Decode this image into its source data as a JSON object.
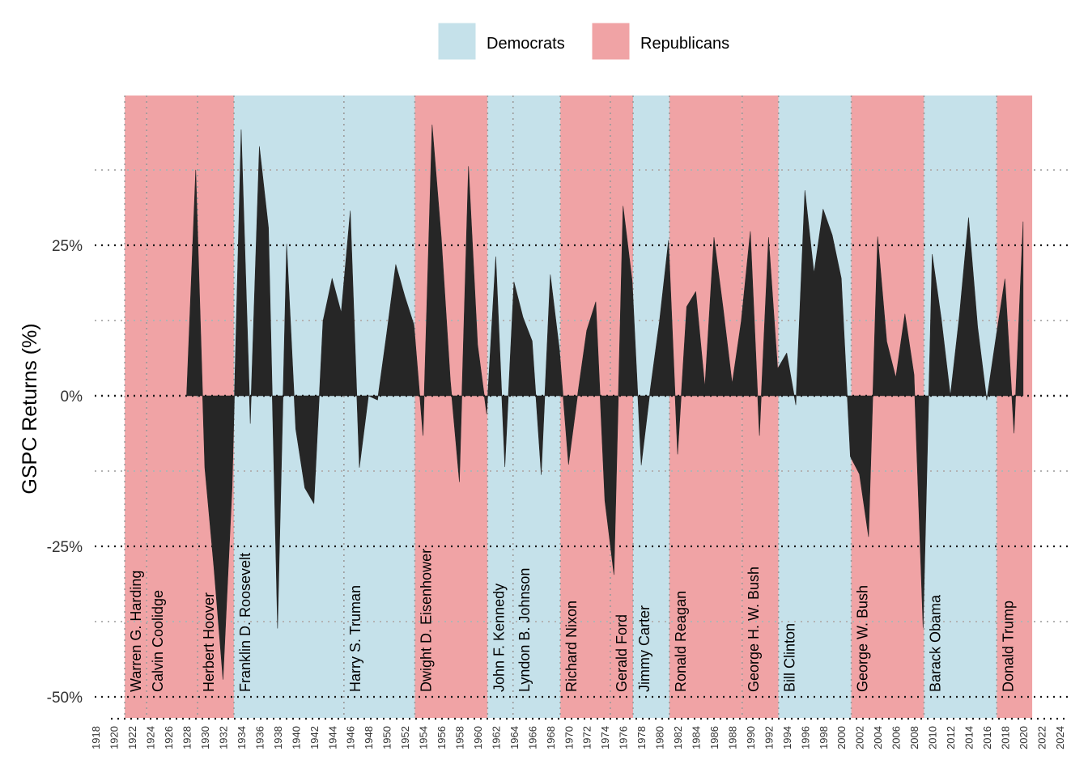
{
  "chart_data": {
    "type": "area",
    "title": "",
    "xlabel": "",
    "ylabel": "GSPC Returns (%)",
    "xlim": [
      1917,
      2025
    ],
    "ylim": [
      -53,
      50
    ],
    "x_ticks": [
      1918,
      1920,
      1922,
      1924,
      1926,
      1928,
      1930,
      1932,
      1934,
      1936,
      1938,
      1940,
      1942,
      1944,
      1946,
      1948,
      1950,
      1952,
      1954,
      1956,
      1958,
      1960,
      1962,
      1964,
      1966,
      1968,
      1970,
      1972,
      1974,
      1976,
      1978,
      1980,
      1982,
      1984,
      1986,
      1988,
      1990,
      1992,
      1994,
      1996,
      1998,
      2000,
      2002,
      2004,
      2006,
      2008,
      2010,
      2012,
      2014,
      2016,
      2018,
      2020,
      2022,
      2024
    ],
    "y_ticks": [
      {
        "value": -50,
        "label": "-50%"
      },
      {
        "value": -25,
        "label": "-25%"
      },
      {
        "value": 0,
        "label": "0%"
      },
      {
        "value": 25,
        "label": "25%"
      }
    ],
    "y_minor_ticks": [
      -37.5,
      -12.5,
      12.5,
      37.5
    ],
    "grid": true,
    "legend_position": "top",
    "legend": [
      {
        "name": "Democrats",
        "color": "#c5e1ea"
      },
      {
        "name": "Republicans",
        "color": "#f0a3a5"
      }
    ],
    "line_color": "#262626",
    "terms": [
      {
        "name": "Warren G. Harding",
        "start": 1921.2,
        "end": 1923.6,
        "party": "Republicans"
      },
      {
        "name": "Calvin Coolidge",
        "start": 1923.6,
        "end": 1929.2,
        "party": "Republicans"
      },
      {
        "name": "Herbert Hoover",
        "start": 1929.2,
        "end": 1933.2,
        "party": "Republicans"
      },
      {
        "name": "Franklin D. Roosevelt",
        "start": 1933.2,
        "end": 1945.3,
        "party": "Democrats"
      },
      {
        "name": "Harry S. Truman",
        "start": 1945.3,
        "end": 1953.1,
        "party": "Democrats"
      },
      {
        "name": "Dwight D. Eisenhower",
        "start": 1953.1,
        "end": 1961.1,
        "party": "Republicans"
      },
      {
        "name": "John F. Kennedy",
        "start": 1961.1,
        "end": 1963.9,
        "party": "Democrats"
      },
      {
        "name": "Lyndon B. Johnson",
        "start": 1963.9,
        "end": 1969.1,
        "party": "Democrats"
      },
      {
        "name": "Richard Nixon",
        "start": 1969.1,
        "end": 1974.6,
        "party": "Republicans"
      },
      {
        "name": "Gerald Ford",
        "start": 1974.6,
        "end": 1977.1,
        "party": "Republicans"
      },
      {
        "name": "Jimmy Carter",
        "start": 1977.1,
        "end": 1981.1,
        "party": "Democrats"
      },
      {
        "name": "Ronald Reagan",
        "start": 1981.1,
        "end": 1989.1,
        "party": "Republicans"
      },
      {
        "name": "George H. W. Bush",
        "start": 1989.1,
        "end": 1993.1,
        "party": "Republicans"
      },
      {
        "name": "Bill Clinton",
        "start": 1993.1,
        "end": 2001.1,
        "party": "Democrats"
      },
      {
        "name": "George W. Bush",
        "start": 2001.1,
        "end": 2009.1,
        "party": "Republicans"
      },
      {
        "name": "Barack Obama",
        "start": 2009.1,
        "end": 2017.1,
        "party": "Democrats"
      },
      {
        "name": "Donald Trump",
        "start": 2017.1,
        "end": 2021.0,
        "party": "Republicans"
      }
    ],
    "series": [
      {
        "x": [
          1928,
          1929,
          1930,
          1931,
          1932,
          1933,
          1934,
          1935,
          1936,
          1937,
          1938,
          1939,
          1940,
          1941,
          1942,
          1943,
          1944,
          1945,
          1946,
          1947,
          1948,
          1949,
          1950,
          1951,
          1952,
          1953,
          1954,
          1955,
          1956,
          1957,
          1958,
          1959,
          1960,
          1961,
          1962,
          1963,
          1964,
          1965,
          1966,
          1967,
          1968,
          1969,
          1970,
          1971,
          1972,
          1973,
          1974,
          1975,
          1976,
          1977,
          1978,
          1979,
          1980,
          1981,
          1982,
          1983,
          1984,
          1985,
          1986,
          1987,
          1988,
          1989,
          1990,
          1991,
          1992,
          1993,
          1994,
          1995,
          1996,
          1997,
          1998,
          1999,
          2000,
          2001,
          2002,
          2003,
          2004,
          2005,
          2006,
          2007,
          2008,
          2009,
          2010,
          2011,
          2012,
          2013,
          2014,
          2015,
          2016,
          2017,
          2018,
          2019,
          2020
        ],
        "values": [
          0,
          37.5,
          -11.9,
          -28.5,
          -47.1,
          -15.2,
          44.2,
          -4.6,
          41.4,
          27.9,
          -38.6,
          25.2,
          -5.5,
          -15.3,
          -17.9,
          12.4,
          19.5,
          13.8,
          30.7,
          -11.9,
          0,
          -0.7,
          10.3,
          21.8,
          16.5,
          11.8,
          -6.6,
          45.0,
          26.4,
          2.6,
          -14.3,
          38.1,
          8.5,
          -3.0,
          23.1,
          -11.8,
          18.9,
          13.0,
          9.1,
          -13.1,
          20.1,
          7.7,
          -11.4,
          0.1,
          10.8,
          15.6,
          -17.4,
          -29.7,
          31.5,
          19.1,
          -11.5,
          1.1,
          12.3,
          25.8,
          -9.7,
          14.8,
          17.3,
          1.4,
          26.3,
          14.6,
          2.0,
          12.4,
          27.3,
          -6.6,
          26.3,
          4.5,
          7.1,
          -1.5,
          34.1,
          20.3,
          31.0,
          26.7,
          19.5,
          -10.1,
          -13.0,
          -23.4,
          26.4,
          9.0,
          3.0,
          13.6,
          3.5,
          -38.5,
          23.5,
          12.8,
          0,
          13.4,
          29.6,
          11.4,
          -0.7,
          9.5,
          19.4,
          -6.2,
          28.9
        ]
      }
    ]
  }
}
